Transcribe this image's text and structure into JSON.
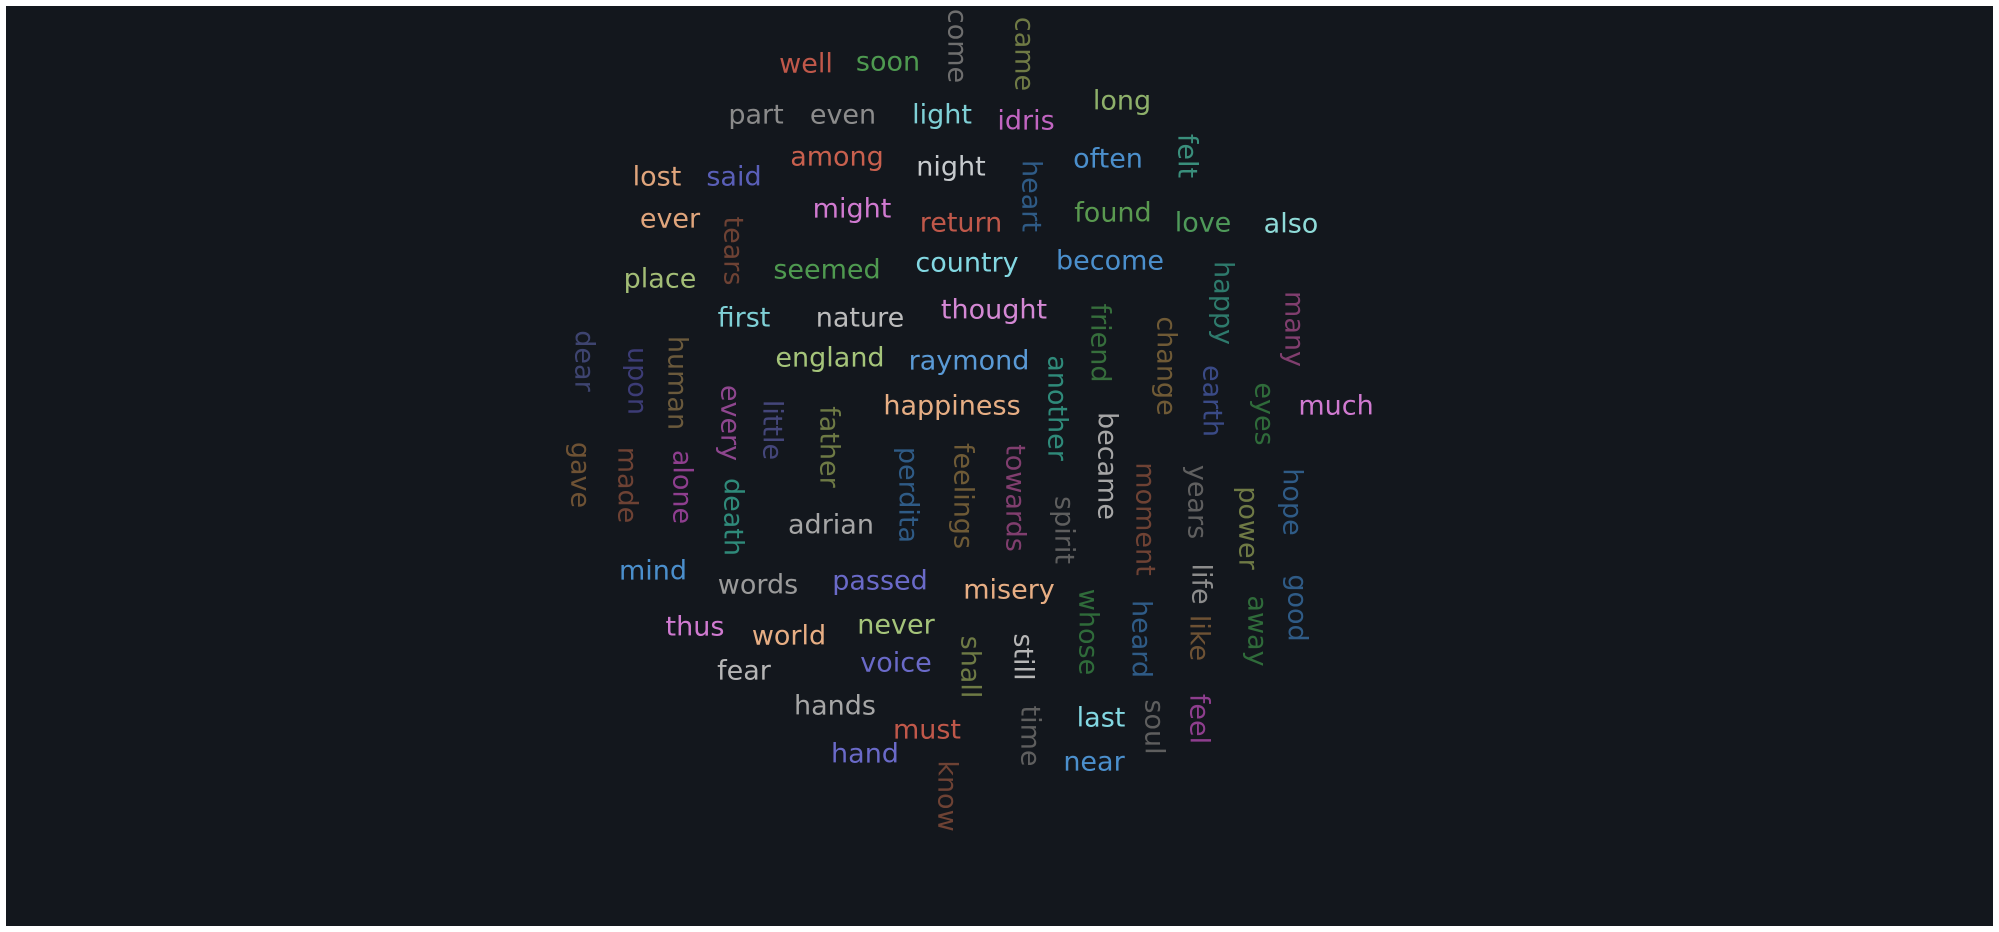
{
  "chart_data": {
    "type": "wordcloud",
    "title": "",
    "words": [
      {
        "text": "well",
        "rotated": false,
        "color": "#c0584a"
      },
      {
        "text": "soon",
        "rotated": false,
        "color": "#4e9a50"
      },
      {
        "text": "come",
        "rotated": true,
        "color": "#6e6e6e"
      },
      {
        "text": "came",
        "rotated": true,
        "color": "#6f7a45"
      },
      {
        "text": "long",
        "rotated": false,
        "color": "#8eb06a"
      },
      {
        "text": "part",
        "rotated": false,
        "color": "#8a8a8a"
      },
      {
        "text": "even",
        "rotated": false,
        "color": "#8c8c8c"
      },
      {
        "text": "light",
        "rotated": false,
        "color": "#7fd0d6"
      },
      {
        "text": "idris",
        "rotated": false,
        "color": "#c165c1"
      },
      {
        "text": "felt",
        "rotated": true,
        "color": "#3a8f7c"
      },
      {
        "text": "among",
        "rotated": false,
        "color": "#c8604e"
      },
      {
        "text": "lost",
        "rotated": false,
        "color": "#e0a57c"
      },
      {
        "text": "said",
        "rotated": false,
        "color": "#5a5fb8"
      },
      {
        "text": "night",
        "rotated": false,
        "color": "#c6cacd"
      },
      {
        "text": "heart",
        "rotated": true,
        "color": "#2f5b86"
      },
      {
        "text": "often",
        "rotated": false,
        "color": "#4b8fcc"
      },
      {
        "text": "might",
        "rotated": false,
        "color": "#d07ad0"
      },
      {
        "text": "found",
        "rotated": false,
        "color": "#5a9a50"
      },
      {
        "text": "ever",
        "rotated": false,
        "color": "#e0a57c"
      },
      {
        "text": "tears",
        "rotated": true,
        "color": "#6e4234"
      },
      {
        "text": "return",
        "rotated": false,
        "color": "#c0584a"
      },
      {
        "text": "love",
        "rotated": false,
        "color": "#4f9a5a"
      },
      {
        "text": "also",
        "rotated": false,
        "color": "#8fdbd8"
      },
      {
        "text": "seemed",
        "rotated": false,
        "color": "#4f9a50"
      },
      {
        "text": "country",
        "rotated": false,
        "color": "#83d8e2"
      },
      {
        "text": "become",
        "rotated": false,
        "color": "#4b8fcc"
      },
      {
        "text": "place",
        "rotated": false,
        "color": "#a3bd76"
      },
      {
        "text": "happy",
        "rotated": true,
        "color": "#2e7a6c"
      },
      {
        "text": "many",
        "rotated": true,
        "color": "#803e6e"
      },
      {
        "text": "first",
        "rotated": false,
        "color": "#7fd0d6"
      },
      {
        "text": "nature",
        "rotated": false,
        "color": "#bcbcbc"
      },
      {
        "text": "thought",
        "rotated": false,
        "color": "#d488d4"
      },
      {
        "text": "friend",
        "rotated": true,
        "color": "#366e3c"
      },
      {
        "text": "change",
        "rotated": true,
        "color": "#6f5a36"
      },
      {
        "text": "dear",
        "rotated": true,
        "color": "#3e4470"
      },
      {
        "text": "upon",
        "rotated": true,
        "color": "#3c3c76"
      },
      {
        "text": "human",
        "rotated": true,
        "color": "#6b5a3c"
      },
      {
        "text": "england",
        "rotated": false,
        "color": "#a5c47a"
      },
      {
        "text": "raymond",
        "rotated": false,
        "color": "#5a9ad6"
      },
      {
        "text": "earth",
        "rotated": true,
        "color": "#3a4a86"
      },
      {
        "text": "eyes",
        "rotated": true,
        "color": "#2f6b3a"
      },
      {
        "text": "every",
        "rotated": true,
        "color": "#8e468e"
      },
      {
        "text": "little",
        "rotated": true,
        "color": "#44467a"
      },
      {
        "text": "another",
        "rotated": true,
        "color": "#2f8a7a"
      },
      {
        "text": "happiness",
        "rotated": false,
        "color": "#e7ae84"
      },
      {
        "text": "much",
        "rotated": false,
        "color": "#d07ad0"
      },
      {
        "text": "father",
        "rotated": true,
        "color": "#6e7a45"
      },
      {
        "text": "became",
        "rotated": true,
        "color": "#a6a6a6"
      },
      {
        "text": "gave",
        "rotated": true,
        "color": "#6e5234"
      },
      {
        "text": "made",
        "rotated": true,
        "color": "#6e4234"
      },
      {
        "text": "alone",
        "rotated": true,
        "color": "#8e3e8e"
      },
      {
        "text": "perdita",
        "rotated": true,
        "color": "#2f5b86"
      },
      {
        "text": "feelings",
        "rotated": true,
        "color": "#6e5a36"
      },
      {
        "text": "towards",
        "rotated": true,
        "color": "#803e6e"
      },
      {
        "text": "moment",
        "rotated": true,
        "color": "#6e4234"
      },
      {
        "text": "years",
        "rotated": true,
        "color": "#5f5f5f"
      },
      {
        "text": "power",
        "rotated": true,
        "color": "#6f7a45"
      },
      {
        "text": "hope",
        "rotated": true,
        "color": "#2f5b86"
      },
      {
        "text": "death",
        "rotated": true,
        "color": "#2f8a7a"
      },
      {
        "text": "spirit",
        "rotated": true,
        "color": "#5e5e5e"
      },
      {
        "text": "adrian",
        "rotated": false,
        "color": "#a6a6a6"
      },
      {
        "text": "mind",
        "rotated": false,
        "color": "#4b8fcc"
      },
      {
        "text": "life",
        "rotated": true,
        "color": "#8c8c8c"
      },
      {
        "text": "good",
        "rotated": true,
        "color": "#2f5b86"
      },
      {
        "text": "words",
        "rotated": false,
        "color": "#9a9a9a"
      },
      {
        "text": "passed",
        "rotated": false,
        "color": "#6a6ac8"
      },
      {
        "text": "misery",
        "rotated": false,
        "color": "#e7ae84"
      },
      {
        "text": "whose",
        "rotated": true,
        "color": "#2f6b3a"
      },
      {
        "text": "heard",
        "rotated": true,
        "color": "#2f5b86"
      },
      {
        "text": "like",
        "rotated": true,
        "color": "#6e5234"
      },
      {
        "text": "away",
        "rotated": true,
        "color": "#2f6b3a"
      },
      {
        "text": "thus",
        "rotated": false,
        "color": "#d07ad0"
      },
      {
        "text": "world",
        "rotated": false,
        "color": "#e7ae84"
      },
      {
        "text": "never",
        "rotated": false,
        "color": "#a5c47a"
      },
      {
        "text": "shall",
        "rotated": true,
        "color": "#6e7a45"
      },
      {
        "text": "still",
        "rotated": true,
        "color": "#b6b6b6"
      },
      {
        "text": "fear",
        "rotated": false,
        "color": "#b6b6b6"
      },
      {
        "text": "voice",
        "rotated": false,
        "color": "#6a6ac8"
      },
      {
        "text": "hands",
        "rotated": false,
        "color": "#a6a6a6"
      },
      {
        "text": "soul",
        "rotated": true,
        "color": "#5e5e5e"
      },
      {
        "text": "feel",
        "rotated": true,
        "color": "#8e3e8e"
      },
      {
        "text": "must",
        "rotated": false,
        "color": "#c0584a"
      },
      {
        "text": "time",
        "rotated": true,
        "color": "#5e5e5e"
      },
      {
        "text": "last",
        "rotated": false,
        "color": "#83d8e2"
      },
      {
        "text": "hand",
        "rotated": false,
        "color": "#6a6ac8"
      },
      {
        "text": "near",
        "rotated": false,
        "color": "#4b8fcc"
      },
      {
        "text": "know",
        "rotated": true,
        "color": "#6e4234"
      }
    ]
  }
}
